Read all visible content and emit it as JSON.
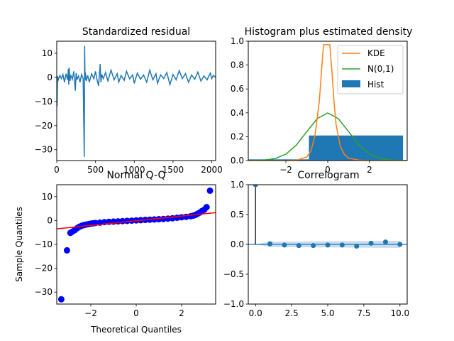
{
  "colors": {
    "series_blue": "#1f77b4",
    "kde_orange": "#ff7f0e",
    "normal_green": "#2ca02c",
    "qq_point_blue": "#0000ff",
    "qq_line_red": "#ff0000",
    "conf_band": "#c9dcef"
  },
  "chart_data": [
    {
      "type": "line",
      "title": "Standardized residual",
      "xlabel": "",
      "ylabel": "",
      "xlim": [
        0,
        2050
      ],
      "ylim": [
        -34.5,
        15
      ],
      "xticks": [
        0,
        500,
        1000,
        1500,
        2000
      ],
      "xtick_labels": [
        "0",
        "500",
        "1000",
        "1500",
        "2000"
      ],
      "yticks": [
        10,
        0,
        -10,
        -20,
        -30
      ],
      "ytick_labels": [
        "10",
        "0",
        "−10",
        "−20",
        "−30"
      ],
      "grid": false,
      "series": [
        {
          "x": [
            0,
            5,
            10,
            20,
            40,
            60,
            80,
            100,
            120,
            140,
            150,
            155,
            160,
            170,
            180,
            200,
            220,
            240,
            250,
            260,
            280,
            300,
            320,
            340,
            355,
            360,
            365,
            370,
            380,
            400,
            420,
            450,
            480,
            500,
            520,
            540,
            560,
            570,
            580,
            600,
            630,
            660,
            700,
            740,
            780,
            800,
            830,
            870,
            900,
            940,
            980,
            1000,
            1040,
            1080,
            1120,
            1160,
            1200,
            1240,
            1280,
            1300,
            1340,
            1380,
            1420,
            1460,
            1500,
            1540,
            1580,
            1620,
            1660,
            1700,
            1740,
            1780,
            1820,
            1860,
            1900,
            1940,
            1980,
            2000,
            2020,
            2050
          ],
          "y": [
            0,
            -12,
            0.5,
            -1,
            0.8,
            -0.5,
            1.2,
            -2,
            1.5,
            -1,
            3.5,
            -3,
            4,
            -1.5,
            1,
            -0.8,
            2.5,
            -5.5,
            1.8,
            -1,
            0.6,
            -2,
            1.2,
            -0.5,
            -33,
            13,
            -1,
            2,
            -1.5,
            0.8,
            -2,
            1.5,
            -0.6,
            2.5,
            -1,
            -3.5,
            5.5,
            -2,
            1.2,
            -0.5,
            2,
            -1.5,
            3,
            -1,
            1.5,
            -2,
            0.8,
            -1.2,
            2.5,
            -0.6,
            1,
            -2.5,
            1.8,
            -0.8,
            1,
            -2,
            3,
            -1,
            1.5,
            -2.5,
            1,
            -0.5,
            2,
            -3,
            1.2,
            -1,
            2.8,
            -0.5,
            1.5,
            -2,
            1,
            -0.8,
            2.2,
            -1.5,
            0.6,
            -1,
            1.8,
            -0.5,
            0.8,
            0
          ]
        }
      ]
    },
    {
      "type": "bar",
      "title": "Histogram plus estimated density",
      "xlabel": "",
      "ylabel": "",
      "xlim": [
        -3.8,
        3.8
      ],
      "ylim": [
        0,
        1.0
      ],
      "xticks": [
        -2,
        0,
        2
      ],
      "xtick_labels": [
        "−2",
        "0",
        "2"
      ],
      "yticks": [
        0.0,
        0.2,
        0.4,
        0.6,
        0.8,
        1.0
      ],
      "ytick_labels": [
        "0.0",
        "0.2",
        "0.4",
        "0.6",
        "0.8",
        "1.0"
      ],
      "legend_position": "top-right",
      "legend_entries": [
        "KDE",
        "N(0,1)",
        "Hist"
      ],
      "hist": {
        "x_start": [
          -3.8,
          -0.9
        ],
        "x_end": [
          -0.9,
          3.6
        ],
        "height": [
          0.01,
          0.21
        ]
      },
      "kde": {
        "x": [
          -3.8,
          -3,
          -2,
          -1.5,
          -1,
          -0.8,
          -0.6,
          -0.4,
          -0.3,
          -0.2,
          -0.1,
          0,
          0.1,
          0.2,
          0.3,
          0.4,
          0.6,
          0.8,
          1,
          1.5,
          2,
          3,
          3.8
        ],
        "y": [
          0,
          0,
          0,
          0.003,
          0.03,
          0.08,
          0.22,
          0.5,
          0.75,
          0.97,
          0.97,
          0.97,
          0.97,
          0.75,
          0.5,
          0.3,
          0.12,
          0.05,
          0.02,
          0.003,
          0,
          0,
          0
        ]
      },
      "normal": {
        "x": [
          -3.8,
          -3.5,
          -3,
          -2.5,
          -2,
          -1.5,
          -1,
          -0.5,
          0,
          0.5,
          1,
          1.5,
          2,
          2.5,
          3,
          3.5,
          3.8
        ],
        "y": [
          0.0003,
          0.0009,
          0.0044,
          0.0175,
          0.054,
          0.1295,
          0.242,
          0.352,
          0.399,
          0.352,
          0.242,
          0.1295,
          0.054,
          0.0175,
          0.0044,
          0.0009,
          0.0003
        ]
      }
    },
    {
      "type": "scatter",
      "title": "Normal Q-Q",
      "xlabel": "Theoretical Quantiles",
      "ylabel": "Sample Quantiles",
      "xlim": [
        -3.5,
        3.5
      ],
      "ylim": [
        -35,
        15
      ],
      "xticks": [
        -2,
        0,
        2
      ],
      "xtick_labels": [
        "−2",
        "0",
        "2"
      ],
      "yticks": [
        10,
        0,
        -10,
        -20,
        -30
      ],
      "ytick_labels": [
        "10",
        "0",
        "−10",
        "−20",
        "−30"
      ],
      "points": {
        "x": [
          -3.3,
          -3.05,
          -2.9,
          -2.8,
          -2.7,
          -2.6,
          -2.5,
          -2.4,
          -2.3,
          -2.2,
          -2.1,
          -2.0,
          -1.9,
          -1.8,
          -1.6,
          -1.4,
          -1.2,
          -1.0,
          -0.8,
          -0.6,
          -0.4,
          -0.2,
          0,
          0.2,
          0.4,
          0.6,
          0.8,
          1.0,
          1.2,
          1.4,
          1.6,
          1.8,
          2.0,
          2.2,
          2.4,
          2.5,
          2.6,
          2.7,
          2.8,
          2.9,
          3.0,
          3.1,
          3.25
        ],
        "y": [
          -33,
          -12.5,
          -5.2,
          -4.6,
          -4.0,
          -3.2,
          -2.6,
          -2.2,
          -1.9,
          -1.7,
          -1.5,
          -1.3,
          -1.2,
          -1.05,
          -0.9,
          -0.7,
          -0.55,
          -0.45,
          -0.35,
          -0.25,
          -0.15,
          -0.05,
          0.05,
          0.15,
          0.25,
          0.35,
          0.45,
          0.55,
          0.65,
          0.8,
          0.95,
          1.15,
          1.35,
          1.55,
          1.8,
          2.0,
          2.3,
          2.8,
          3.3,
          4.0,
          4.5,
          5.6,
          12.5
        ]
      },
      "reference_line": {
        "x": [
          -3.5,
          3.5
        ],
        "y": [
          -3.5,
          3.3
        ]
      }
    },
    {
      "type": "scatter",
      "title": "Correlogram",
      "xlabel": "",
      "ylabel": "",
      "xlim": [
        -0.5,
        10.5
      ],
      "ylim": [
        -1.0,
        1.0
      ],
      "xticks": [
        0,
        2.5,
        5,
        7.5,
        10
      ],
      "xtick_labels": [
        "0.0",
        "2.5",
        "5.0",
        "7.5",
        "10.0"
      ],
      "yticks": [
        1.0,
        0.5,
        0.0,
        -0.5,
        -1.0
      ],
      "ytick_labels": [
        "1.0",
        "0.5",
        "0.0",
        "−0.5",
        "−1.0"
      ],
      "lags": [
        0,
        1,
        2,
        3,
        4,
        5,
        6,
        7,
        8,
        9,
        10
      ],
      "acf": [
        1.0,
        0.01,
        -0.01,
        -0.02,
        -0.02,
        -0.01,
        -0.01,
        -0.03,
        0.02,
        0.04,
        0.0
      ],
      "conf_band": {
        "lags": [
          0,
          1,
          10
        ],
        "upper": [
          0.0,
          0.045,
          0.06
        ],
        "lower": [
          0.0,
          -0.045,
          -0.06
        ]
      }
    }
  ]
}
